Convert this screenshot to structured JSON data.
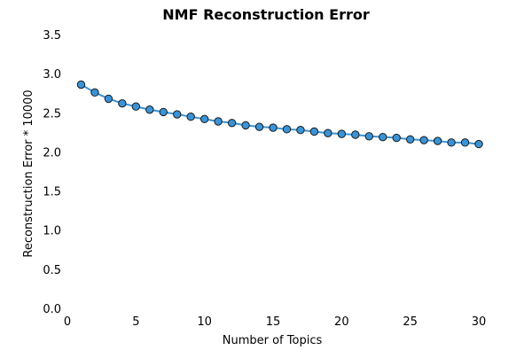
{
  "chart_data": {
    "type": "line",
    "title": "NMF Reconstruction Error",
    "xlabel": "Number of Topics",
    "ylabel": "Reconstruction Error * 10000",
    "xlim": [
      0,
      30
    ],
    "ylim": [
      0,
      3.5
    ],
    "x_ticks": [
      "0",
      "5",
      "10",
      "15",
      "20",
      "25",
      "30"
    ],
    "y_ticks": [
      "0.0",
      "0.5",
      "1.0",
      "1.5",
      "2.0",
      "2.5",
      "3.0",
      "3.5"
    ],
    "grid": false,
    "series": [
      {
        "color": "#3a93d6",
        "marker_edge_color": "#1a1a1a",
        "x": [
          1,
          2,
          3,
          4,
          5,
          6,
          7,
          8,
          9,
          10,
          11,
          12,
          13,
          14,
          15,
          16,
          17,
          18,
          19,
          20,
          21,
          22,
          23,
          24,
          25,
          26,
          27,
          28,
          29,
          30
        ],
        "values": [
          2.86,
          2.76,
          2.68,
          2.62,
          2.58,
          2.54,
          2.51,
          2.48,
          2.45,
          2.42,
          2.39,
          2.37,
          2.34,
          2.32,
          2.31,
          2.29,
          2.28,
          2.26,
          2.24,
          2.23,
          2.22,
          2.2,
          2.19,
          2.18,
          2.16,
          2.15,
          2.14,
          2.12,
          2.12,
          2.1
        ]
      }
    ]
  }
}
